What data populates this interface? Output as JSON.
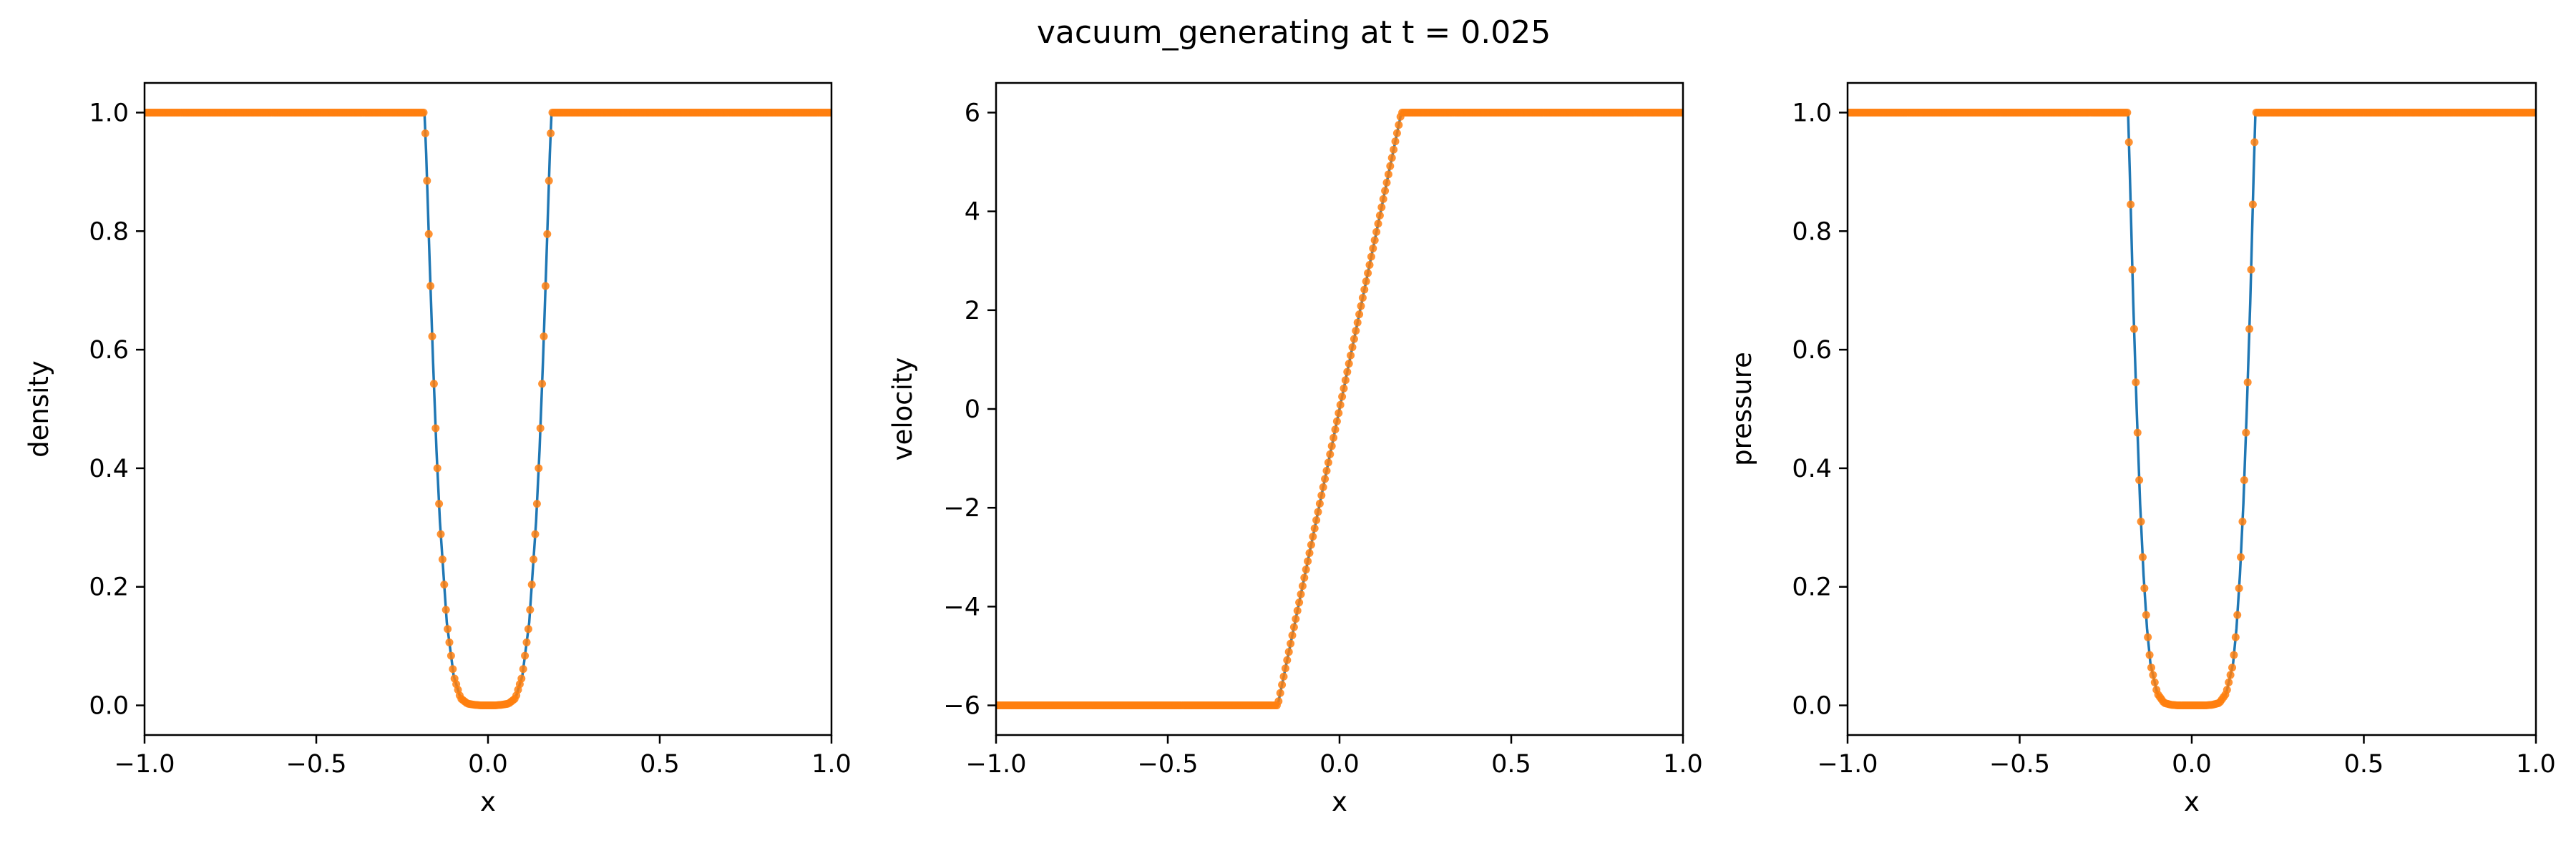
{
  "figure": {
    "title": "vacuum_generating at t = 0.025"
  },
  "colors": {
    "line": "#1f77b4",
    "markers": "#ff7f0e",
    "axes": "#000000",
    "background": "#ffffff"
  },
  "chart_data": [
    {
      "type": "line",
      "title": "",
      "xlabel": "x",
      "ylabel": "density",
      "xlim": [
        -1.0,
        1.0
      ],
      "ylim": [
        -0.05,
        1.05
      ],
      "xticks": [
        -1.0,
        -0.5,
        0.0,
        0.5,
        1.0
      ],
      "xtick_labels": [
        "−1.0",
        "−0.5",
        "0.0",
        "0.5",
        "1.0"
      ],
      "yticks": [
        0.0,
        0.2,
        0.4,
        0.6,
        0.8,
        1.0
      ],
      "ytick_labels": [
        "0.0",
        "0.2",
        "0.4",
        "0.6",
        "0.8",
        "1.0"
      ],
      "grid": false,
      "series": [
        {
          "style": "line and markers",
          "x": [
            -1.0,
            -0.185,
            -0.18,
            -0.17,
            -0.16,
            -0.15,
            -0.14,
            -0.12,
            -0.1,
            -0.08,
            -0.06,
            -0.04,
            -0.02,
            0.0,
            0.02,
            0.04,
            0.06,
            0.08,
            0.1,
            0.12,
            0.14,
            0.15,
            0.16,
            0.17,
            0.18,
            0.185,
            1.0
          ],
          "y": [
            1.0,
            1.0,
            0.93,
            0.75,
            0.58,
            0.43,
            0.31,
            0.14,
            0.05,
            0.012,
            0.003,
            0.001,
            0.0,
            0.0,
            0.0,
            0.001,
            0.003,
            0.012,
            0.05,
            0.14,
            0.31,
            0.43,
            0.58,
            0.75,
            0.93,
            1.0,
            1.0
          ]
        }
      ]
    },
    {
      "type": "line",
      "title": "",
      "xlabel": "x",
      "ylabel": "velocity",
      "xlim": [
        -1.0,
        1.0
      ],
      "ylim": [
        -6.6,
        6.6
      ],
      "xticks": [
        -1.0,
        -0.5,
        0.0,
        0.5,
        1.0
      ],
      "xtick_labels": [
        "−1.0",
        "−0.5",
        "0.0",
        "0.5",
        "1.0"
      ],
      "yticks": [
        -6,
        -4,
        -2,
        0,
        2,
        4,
        6
      ],
      "ytick_labels": [
        "−6",
        "−4",
        "−2",
        "0",
        "2",
        "4",
        "6"
      ],
      "grid": false,
      "series": [
        {
          "style": "line and markers",
          "x": [
            -1.0,
            -0.18,
            0.18,
            1.0
          ],
          "y": [
            -6.0,
            -6.0,
            6.0,
            6.0
          ]
        }
      ]
    },
    {
      "type": "line",
      "title": "",
      "xlabel": "x",
      "ylabel": "pressure",
      "xlim": [
        -1.0,
        1.0
      ],
      "ylim": [
        -0.05,
        1.05
      ],
      "xticks": [
        -1.0,
        -0.5,
        0.0,
        0.5,
        1.0
      ],
      "xtick_labels": [
        "−1.0",
        "−0.5",
        "0.0",
        "0.5",
        "1.0"
      ],
      "yticks": [
        0.0,
        0.2,
        0.4,
        0.6,
        0.8,
        1.0
      ],
      "ytick_labels": [
        "0.0",
        "0.2",
        "0.4",
        "0.6",
        "0.8",
        "1.0"
      ],
      "grid": false,
      "series": [
        {
          "style": "line and markers",
          "x": [
            -1.0,
            -0.185,
            -0.18,
            -0.17,
            -0.16,
            -0.15,
            -0.14,
            -0.13,
            -0.12,
            -0.1,
            -0.08,
            -0.06,
            -0.04,
            0.0,
            0.04,
            0.06,
            0.08,
            0.1,
            0.12,
            0.13,
            0.14,
            0.15,
            0.16,
            0.17,
            0.18,
            0.185,
            1.0
          ],
          "y": [
            1.0,
            1.0,
            0.9,
            0.68,
            0.5,
            0.34,
            0.22,
            0.13,
            0.07,
            0.02,
            0.004,
            0.001,
            0.0,
            0.0,
            0.0,
            0.001,
            0.004,
            0.02,
            0.07,
            0.13,
            0.22,
            0.34,
            0.5,
            0.68,
            0.9,
            1.0,
            1.0
          ]
        }
      ]
    }
  ]
}
